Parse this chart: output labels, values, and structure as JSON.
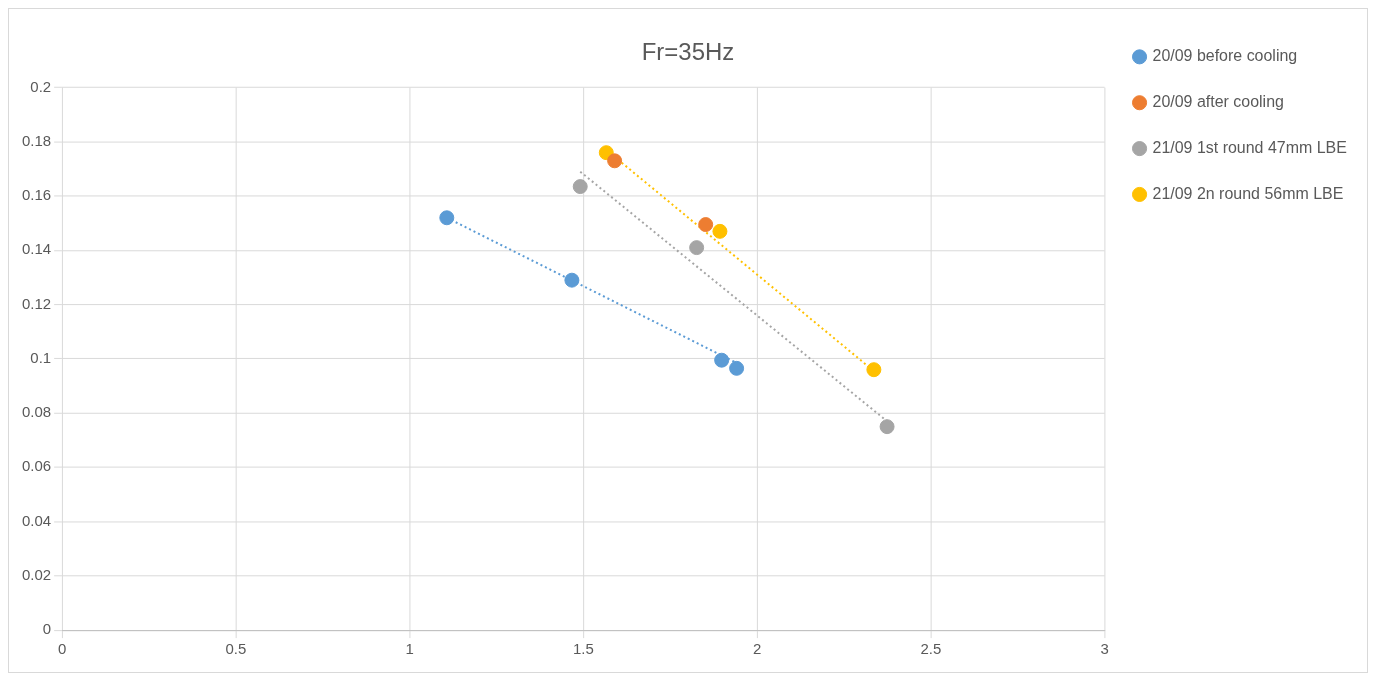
{
  "chart_data": {
    "type": "scatter",
    "title": "Fr=35Hz",
    "xlim": [
      0,
      3
    ],
    "xticks": [
      0,
      0.5,
      1,
      1.5,
      2,
      2.5,
      3
    ],
    "ylim": [
      0,
      0.2
    ],
    "yticks": [
      0,
      0.02,
      0.04,
      0.06,
      0.08,
      0.1,
      0.12,
      0.14,
      0.16,
      0.18,
      0.2
    ],
    "grid": true,
    "legend": "top right",
    "marker": "circle",
    "series": [
      {
        "name": "20/09 before cooling",
        "color": "#5b9bd5",
        "x": [
          1.107,
          1.467,
          1.898,
          1.941
        ],
        "values": [
          0.152,
          0.129,
          0.0995,
          0.0965
        ]
      },
      {
        "name": "20/09 after cooling",
        "color": "#ed7d31",
        "x": [
          1.59,
          1.852
        ],
        "values": [
          0.173,
          0.1495
        ]
      },
      {
        "name": "21/09 1st round 47mm LBE",
        "color": "#a5a5a5",
        "x": [
          1.491,
          1.826,
          2.374
        ],
        "values": [
          0.1635,
          0.141,
          0.075
        ]
      },
      {
        "name": "21/09 2n round 56mm LBE",
        "color": "#ffc000",
        "x": [
          1.566,
          1.893,
          2.336
        ],
        "values": [
          0.176,
          0.147,
          0.096
        ]
      },
      {
        "type": "line",
        "marker": "none",
        "color": "#5b9bd5",
        "line_style": "dotted",
        "x": [
          1.107,
          1.941
        ],
        "values": [
          0.152,
          0.0985
        ]
      },
      {
        "type": "line",
        "marker": "none",
        "color": "#a5a5a5",
        "line_style": "dotted",
        "x": [
          1.491,
          2.374
        ],
        "values": [
          0.169,
          0.077
        ]
      },
      {
        "type": "line",
        "marker": "none",
        "color": "#ffc000",
        "line_style": "dotted",
        "x": [
          1.566,
          2.336
        ],
        "values": [
          0.177,
          0.0955
        ]
      }
    ]
  }
}
